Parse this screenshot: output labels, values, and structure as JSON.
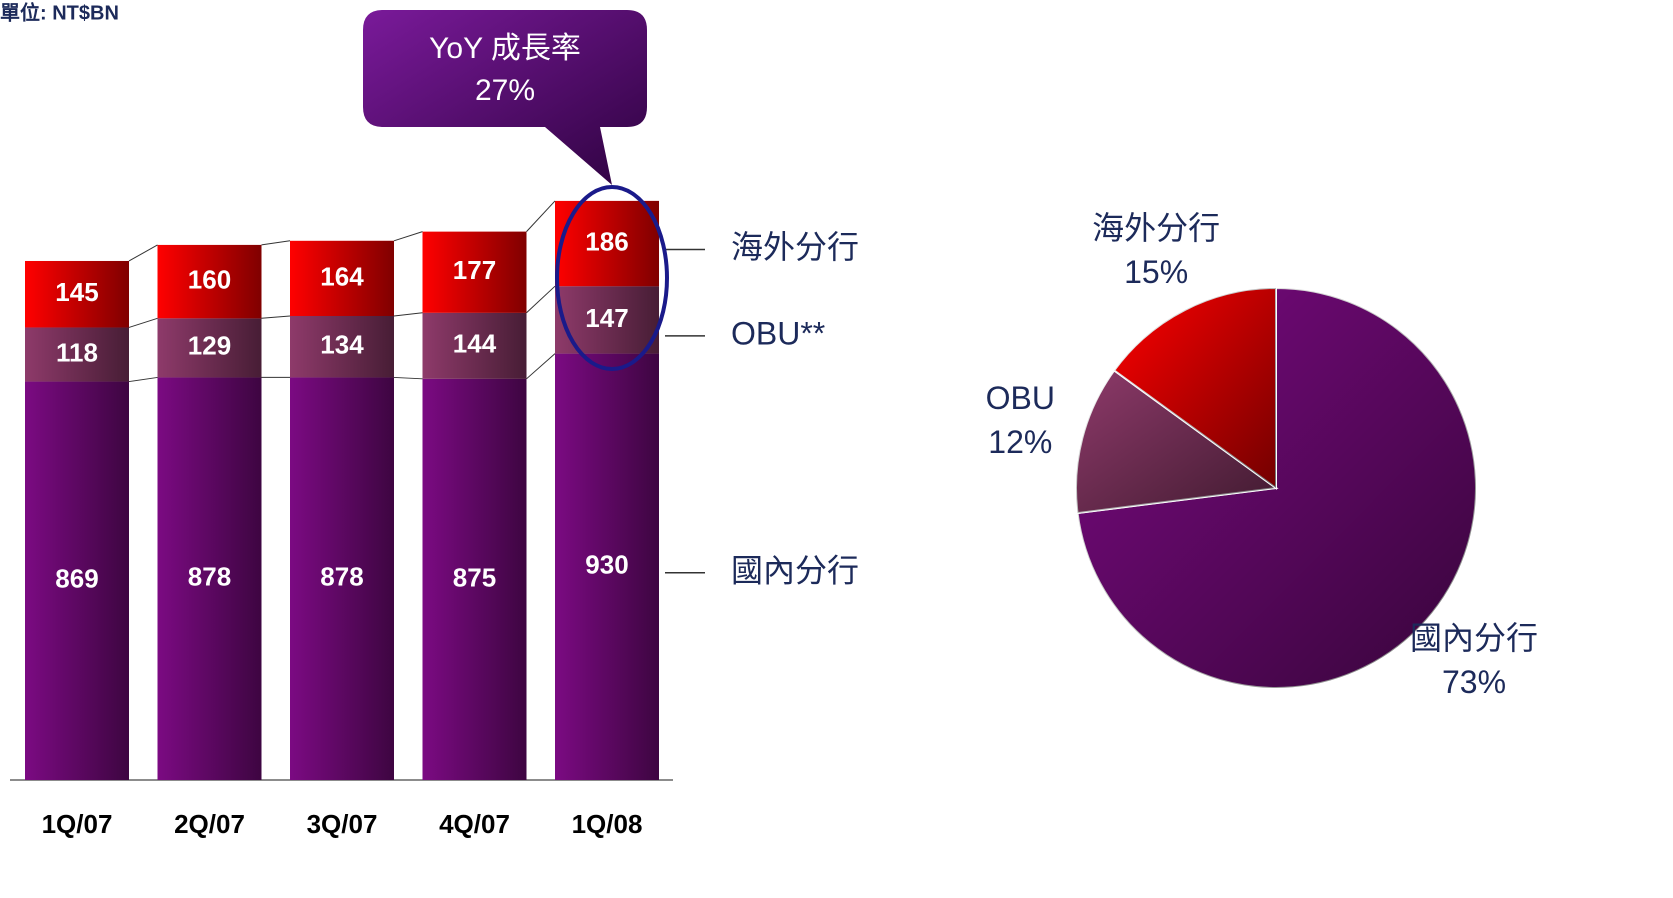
{
  "chart_data": [
    {
      "type": "stacked-bar",
      "subtitle": "單位: NT$BN",
      "categories": [
        "1Q/07",
        "2Q/07",
        "3Q/07",
        "4Q/07",
        "1Q/08"
      ],
      "series": [
        {
          "name": "國內分行",
          "color": "#7b0a82",
          "values": [
            869,
            878,
            878,
            875,
            930
          ]
        },
        {
          "name": "OBU**",
          "color": "#8e3a6a",
          "values": [
            118,
            129,
            134,
            144,
            147
          ]
        },
        {
          "name": "海外分行",
          "color": "#ff0000",
          "values": [
            145,
            160,
            164,
            177,
            186
          ]
        }
      ],
      "annotations": [
        "YoY 成長率",
        "27%"
      ]
    },
    {
      "type": "pie",
      "categories": [
        "國內分行",
        "OBU",
        "海外分行"
      ],
      "values": [
        73,
        12,
        15
      ],
      "value_labels": [
        "73%",
        "12%",
        "15%"
      ],
      "colors": [
        "#7b0a82",
        "#8e3a6a",
        "#ff0000"
      ]
    }
  ]
}
